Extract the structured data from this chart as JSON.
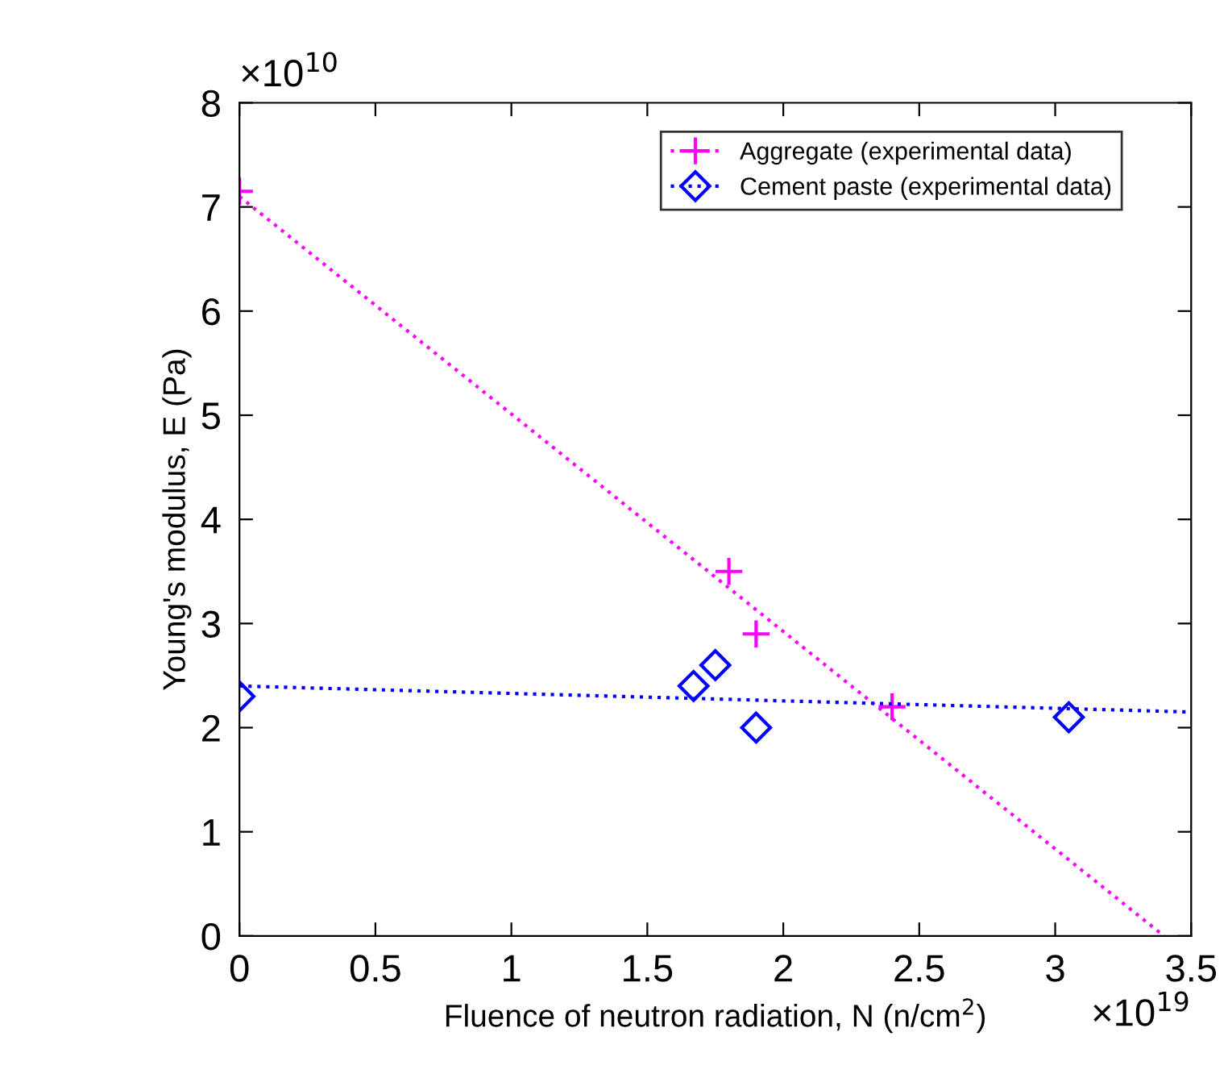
{
  "chart_data": {
    "type": "scatter",
    "xlabel": "Fluence of neutron radiation, N (n/cm$^{2}$)",
    "ylabel": "Young's modulus, E (Pa)",
    "annotations": [
      "×10$^{10}$",
      "×10$^{19}$"
    ],
    "xlim": [
      0,
      3.5
    ],
    "xticks": [
      0,
      0.5,
      1,
      1.5,
      2,
      2.5,
      3,
      3.5
    ],
    "ylim": [
      0,
      8
    ],
    "yticks": [
      0,
      1,
      2,
      3,
      4,
      5,
      6,
      7,
      8
    ],
    "grid": false,
    "legend": "top right",
    "series": [
      {
        "name": "Aggregate (experimental data)",
        "color": "#ff00ff",
        "marker": "cross",
        "x": [
          0,
          1.8,
          1.9,
          2.4
        ],
        "values": [
          7.15,
          3.5,
          2.9,
          2.2
        ]
      },
      {
        "type": "line",
        "color": "#ff00ff",
        "line_style": "dotted",
        "x": [
          0,
          3.4
        ],
        "values": [
          7.1,
          0
        ]
      },
      {
        "name": "Cement paste (experimental data)",
        "color": "#0000ff",
        "marker": "diamond",
        "x": [
          0,
          1.67,
          1.75,
          1.9,
          3.05
        ],
        "values": [
          2.3,
          2.4,
          2.6,
          2.0,
          2.1
        ]
      },
      {
        "type": "line",
        "color": "#0000ff",
        "line_style": "dotted",
        "x": [
          0,
          3.5
        ],
        "values": [
          2.4,
          2.15
        ]
      }
    ]
  }
}
